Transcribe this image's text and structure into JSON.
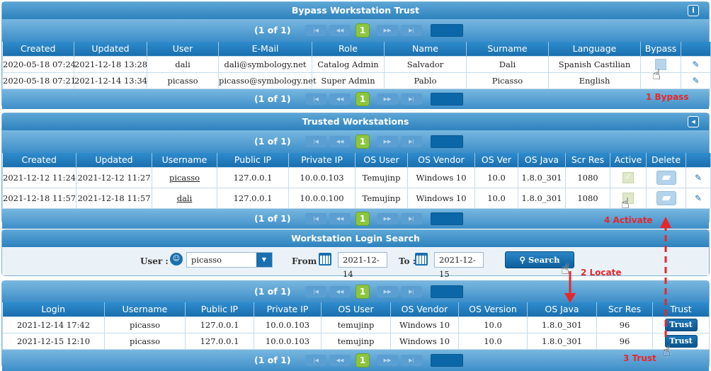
{
  "bypass": {
    "title": "Bypass Workstation Trust",
    "info_icon": "i",
    "pager": {
      "info": "(1 of 1)",
      "page": "1"
    },
    "columns": [
      "Created",
      "Updated",
      "User",
      "E-Mail",
      "Role",
      "Name",
      "Surname",
      "Language",
      "Bypass",
      ""
    ],
    "rows": [
      {
        "created": "2020-05-18 07:24",
        "updated": "2021-12-18 13:28",
        "user": "dali",
        "email": "dali@symbology.net",
        "role": "Catalog Admin",
        "name": "Salvador",
        "surname": "Dali",
        "language": "Spanish Castilian"
      },
      {
        "created": "2020-05-18 07:21",
        "updated": "2021-12-14 13:34",
        "user": "picasso",
        "email": "picasso@symbology.net",
        "role": "Super Admin",
        "name": "Pablo",
        "surname": "Picasso",
        "language": "English"
      }
    ]
  },
  "trusted": {
    "title": "Trusted Workstations",
    "pager": {
      "info": "(1 of 1)",
      "page": "1"
    },
    "columns": [
      "Created",
      "Updated",
      "Username",
      "Public IP",
      "Private IP",
      "OS User",
      "OS Vendor",
      "OS Ver",
      "OS Java",
      "Scr Res",
      "Active",
      "Delete",
      ""
    ],
    "rows": [
      {
        "created": "2021-12-12 11:24",
        "updated": "2021-12-12 11:27",
        "username": "picasso",
        "public_ip": "127.0.0.1",
        "private_ip": "10.0.0.103",
        "os_user": "Temujinp",
        "os_vendor": "Windows 10",
        "os_ver": "10.0",
        "os_java": "1.8.0_301",
        "scr_res": "1080"
      },
      {
        "created": "2021-12-18 11:57",
        "updated": "2021-12-18 11:57",
        "username": "dali",
        "public_ip": "127.0.0.1",
        "private_ip": "10.0.0.100",
        "os_user": "Temujinp",
        "os_vendor": "Windows 10",
        "os_ver": "10.0",
        "os_java": "1.8.0_301",
        "scr_res": "1080"
      }
    ]
  },
  "search": {
    "title": "Workstation Login Search",
    "user_label": "User :",
    "user_value": "picasso",
    "from_label": "From :",
    "from_value": "2021-12-14",
    "to_label": "To :",
    "to_value": "2021-12-15",
    "button": "Search"
  },
  "logins": {
    "pager": {
      "info": "(1 of 1)",
      "page": "1"
    },
    "columns": [
      "Login",
      "Username",
      "Public IP",
      "Private IP",
      "OS User",
      "OS Vendor",
      "OS Version",
      "OS Java",
      "Scr Res",
      "Trust"
    ],
    "rows": [
      {
        "login": "2021-12-14 17:42",
        "username": "picasso",
        "public_ip": "127.0.0.1",
        "private_ip": "10.0.0.103",
        "os_user": "temujinp",
        "os_vendor": "Windows 10",
        "os_version": "10.0",
        "os_java": "1.8.0_301",
        "scr_res": "96",
        "trust": "Trust"
      },
      {
        "login": "2021-12-15 12:10",
        "username": "picasso",
        "public_ip": "127.0.0.1",
        "private_ip": "10.0.0.103",
        "os_user": "temujinp",
        "os_vendor": "Windows 10",
        "os_version": "10.0",
        "os_java": "1.8.0_301",
        "scr_res": "96",
        "trust": "Trust"
      }
    ]
  },
  "annotations": {
    "bypass": "1 Bypass",
    "locate": "2 Locate",
    "trust": "3 Trust",
    "activate": "4 Activate"
  },
  "colors": {
    "accent": "#1a6fae",
    "annotation": "#e8262a",
    "page_active": "#8cc63f"
  }
}
